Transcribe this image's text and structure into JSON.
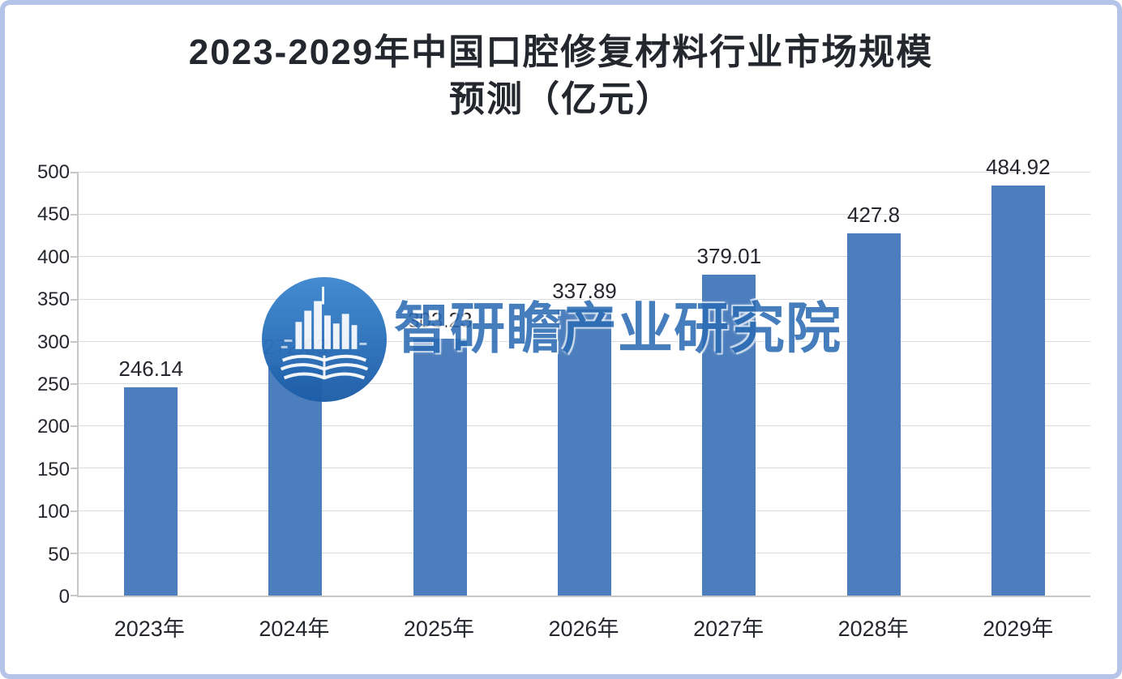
{
  "page": {
    "background": "#ffffff",
    "frame_border_color": "#b6c3e9"
  },
  "title": {
    "line1": "2023-2029年中国口腔修复材料行业市场规模",
    "line2": "预测（亿元）"
  },
  "watermark": {
    "brand_text": "智研瞻产业研究院",
    "logo_icon": "city-skyline-open-book-logo",
    "text_color": "#2c6cb5",
    "logo_color": "#2f74bd"
  },
  "colors": {
    "bar": "#4c7dbc",
    "axis_text": "#25272e",
    "gridline": "#dadada",
    "title_text": "#25272e"
  },
  "chart_data": {
    "type": "bar",
    "title": "2023-2029年中国口腔修复材料行业市场规模预测（亿元）",
    "categories": [
      "2023年",
      "2024年",
      "2025年",
      "2026年",
      "2027年",
      "2028年",
      "2029年"
    ],
    "values": [
      246.14,
      272.03,
      303.23,
      337.89,
      379.01,
      427.8,
      484.92
    ],
    "value_labels": [
      "246.14",
      "272.03",
      "303.23",
      "337.89",
      "379.01",
      "427.8",
      "484.92"
    ],
    "xlabel": "",
    "ylabel": "",
    "ylim": [
      0,
      500
    ],
    "ytick_step": 50,
    "yticks": [
      0,
      50,
      100,
      150,
      200,
      250,
      300,
      350,
      400,
      450,
      500
    ],
    "grid": "horizontal",
    "legend": "none",
    "bar_color": "#4c7dbc"
  }
}
